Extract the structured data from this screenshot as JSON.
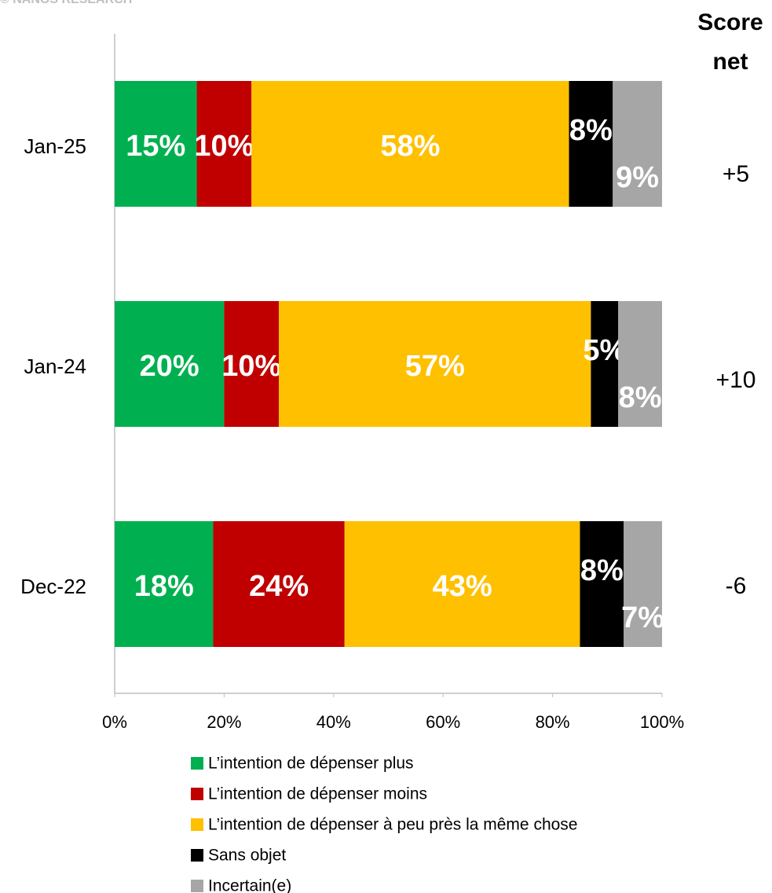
{
  "chart_data": {
    "type": "stacked_barh",
    "watermark": "© NANOS RESEARCH",
    "categories": [
      "Jan-25",
      "Jan-24",
      "Dec-22"
    ],
    "series": [
      {
        "name": "L’intention de dépenser plus",
        "color": "#00b050",
        "values": [
          15,
          20,
          18
        ],
        "value_labels": [
          "15%",
          "20%",
          "18%"
        ]
      },
      {
        "name": "L’intention de dépenser moins",
        "color": "#c00000",
        "values": [
          10,
          10,
          24
        ],
        "value_labels": [
          "10%",
          "10%",
          "24%"
        ]
      },
      {
        "name": "L’intention de dépenser à peu près la même chose",
        "color": "#ffc000",
        "values": [
          58,
          57,
          43
        ],
        "value_labels": [
          "58%",
          "57%",
          "43%"
        ]
      },
      {
        "name": "Sans objet",
        "color": "#000000",
        "values": [
          8,
          5,
          8
        ],
        "value_labels": [
          "8%",
          "5%",
          "8%"
        ]
      },
      {
        "name": "Incertain(e)",
        "color": "#a6a6a6",
        "values": [
          9,
          8,
          7
        ],
        "value_labels": [
          "9%",
          "8%",
          "7%"
        ]
      }
    ],
    "xlim": [
      0,
      100
    ],
    "xticks": [
      {
        "value": 0,
        "label": "0%"
      },
      {
        "value": 20,
        "label": "20%"
      },
      {
        "value": 40,
        "label": "40%"
      },
      {
        "value": 60,
        "label": "60%"
      },
      {
        "value": 80,
        "label": "80%"
      },
      {
        "value": 100,
        "label": "100%"
      }
    ],
    "net_score": {
      "title": [
        "Score",
        "net"
      ],
      "values": [
        5,
        10,
        -6
      ],
      "value_labels": [
        "+5",
        "+10",
        "-6"
      ]
    },
    "legend": "bottom"
  }
}
